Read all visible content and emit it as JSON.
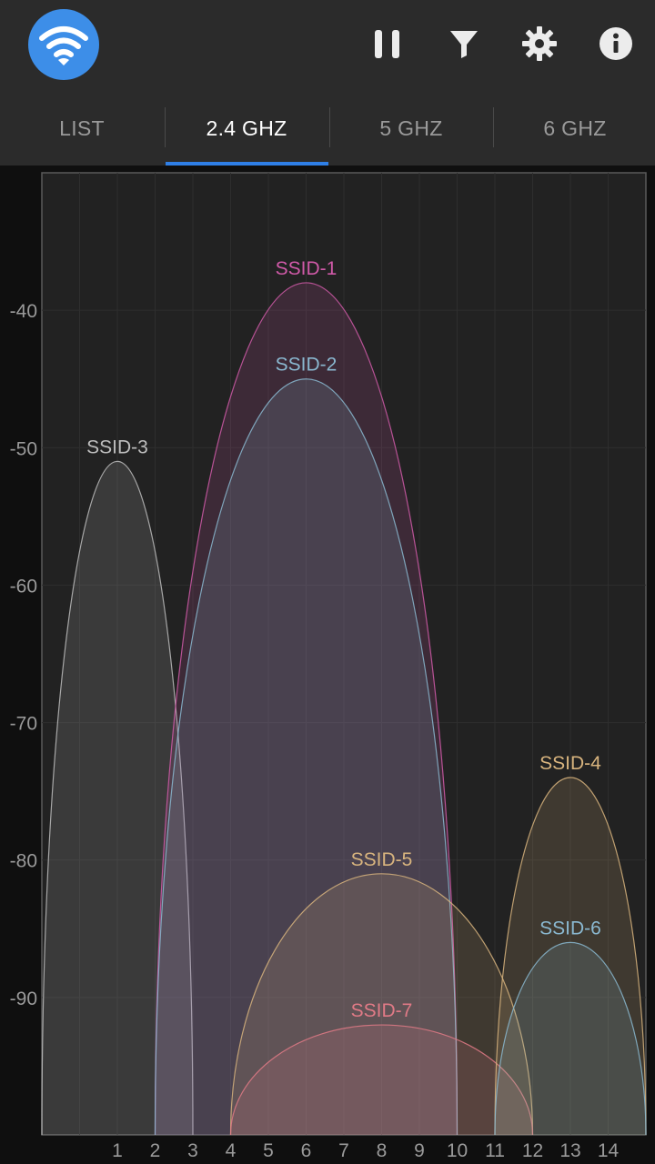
{
  "app_bar": {
    "logo_icon": "wifi-icon",
    "actions": [
      {
        "icon": "pause-icon"
      },
      {
        "icon": "filter-icon"
      },
      {
        "icon": "gear-icon"
      },
      {
        "icon": "info-icon"
      }
    ]
  },
  "tabs": [
    {
      "label": "LIST",
      "active": false
    },
    {
      "label": "2.4 GHZ",
      "active": true
    },
    {
      "label": "5 GHZ",
      "active": false
    },
    {
      "label": "6 GHZ",
      "active": false
    }
  ],
  "colors": {
    "accent": "#2f7fe6",
    "logo": "#3d8ee8"
  },
  "chart_data": {
    "type": "area",
    "x_ticks": [
      1,
      2,
      3,
      4,
      5,
      6,
      7,
      8,
      9,
      10,
      11,
      12,
      13,
      14
    ],
    "xlim": [
      -1,
      15
    ],
    "y_ticks": [
      -40,
      -50,
      -60,
      -70,
      -80,
      -90
    ],
    "ylim": [
      -100,
      -30
    ],
    "grid": true,
    "networks": [
      {
        "name": "SSID-3",
        "channel": 1,
        "width_channels": 4,
        "signal": -51,
        "color": "#bdbdbd"
      },
      {
        "name": "SSID-1",
        "channel": 6,
        "width_channels": 8,
        "signal": -38,
        "color": "#d05aa8"
      },
      {
        "name": "SSID-2",
        "channel": 6,
        "width_channels": 8,
        "signal": -45,
        "color": "#8ab8d0"
      },
      {
        "name": "SSID-5",
        "channel": 8,
        "width_channels": 8,
        "signal": -81,
        "color": "#d8b47e"
      },
      {
        "name": "SSID-7",
        "channel": 8,
        "width_channels": 8,
        "signal": -92,
        "color": "#e07a86"
      },
      {
        "name": "SSID-4",
        "channel": 13,
        "width_channels": 4,
        "signal": -74,
        "color": "#d8b47e"
      },
      {
        "name": "SSID-6",
        "channel": 13,
        "width_channels": 4,
        "signal": -86,
        "color": "#8ab8d0"
      }
    ]
  }
}
